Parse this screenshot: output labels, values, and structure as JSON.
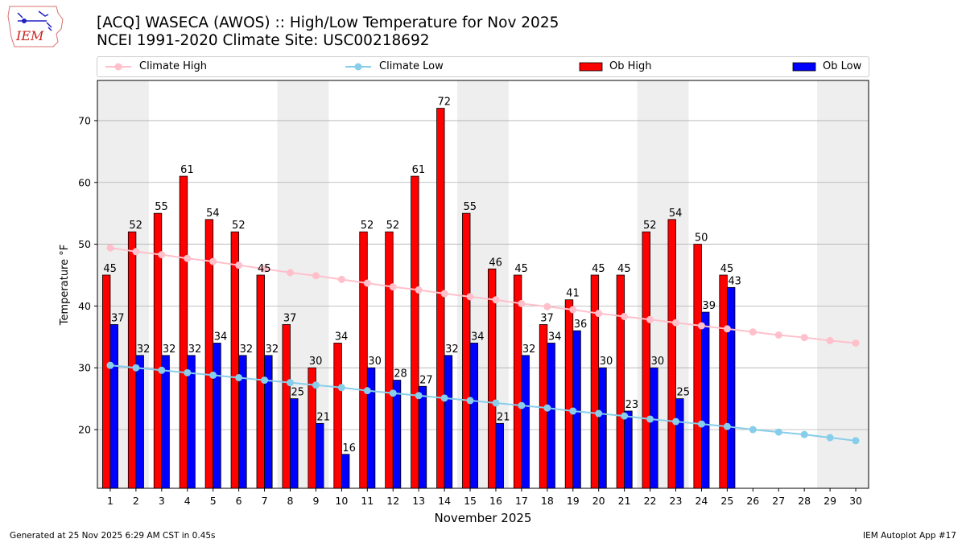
{
  "header": {
    "logo_text": "IEM",
    "title": "[ACQ] WASECA (AWOS) :: High/Low Temperature for Nov 2025",
    "subtitle": "NCEI 1991-2020 Climate Site: USC00218692"
  },
  "legend": {
    "climate_high": "Climate High",
    "climate_low": "Climate Low",
    "ob_high": "Ob High",
    "ob_low": "Ob Low"
  },
  "colors": {
    "ob_high": "#ff0000",
    "ob_low": "#0000ff",
    "climate_high": "#ffc0cb",
    "climate_low": "#87ceeb",
    "weekend_shade": "#eeeeee",
    "grid": "#b0b0b0"
  },
  "chart_data": {
    "type": "bar",
    "xlabel": "November 2025",
    "ylabel": "Temperature °F",
    "ylim": [
      10.5,
      76.5
    ],
    "yticks": [
      20,
      30,
      40,
      50,
      60,
      70
    ],
    "grid": "horizontal",
    "legend_position": "top",
    "days": [
      1,
      2,
      3,
      4,
      5,
      6,
      7,
      8,
      9,
      10,
      11,
      12,
      13,
      14,
      15,
      16,
      17,
      18,
      19,
      20,
      21,
      22,
      23,
      24,
      25,
      26,
      27,
      28,
      29,
      30
    ],
    "weekend_spans": [
      [
        1,
        2
      ],
      [
        8,
        9
      ],
      [
        15,
        16
      ],
      [
        22,
        23
      ],
      [
        29,
        30
      ]
    ],
    "series": [
      {
        "name": "Ob High",
        "kind": "bar",
        "values": [
          45,
          52,
          55,
          61,
          54,
          52,
          45,
          37,
          30,
          34,
          52,
          52,
          61,
          72,
          55,
          46,
          45,
          37,
          41,
          45,
          45,
          52,
          54,
          50,
          45
        ]
      },
      {
        "name": "Ob Low",
        "kind": "bar",
        "values": [
          37,
          32,
          32,
          32,
          34,
          32,
          32,
          25,
          21,
          16,
          30,
          28,
          27,
          32,
          34,
          21,
          32,
          34,
          36,
          30,
          23,
          30,
          25,
          39,
          43
        ]
      },
      {
        "name": "Climate High",
        "kind": "line",
        "values": [
          49.4,
          48.8,
          48.3,
          47.7,
          47.2,
          46.6,
          46.0,
          45.4,
          44.9,
          44.3,
          43.7,
          43.1,
          42.6,
          42.0,
          41.5,
          41.0,
          40.4,
          39.9,
          39.4,
          38.8,
          38.3,
          37.8,
          37.3,
          36.8,
          36.3,
          35.8,
          35.3,
          34.9,
          34.4,
          34.0
        ]
      },
      {
        "name": "Climate Low",
        "kind": "line",
        "values": [
          30.4,
          30.0,
          29.6,
          29.2,
          28.8,
          28.4,
          28.0,
          27.6,
          27.2,
          26.8,
          26.3,
          25.9,
          25.5,
          25.1,
          24.7,
          24.3,
          23.9,
          23.5,
          23.0,
          22.6,
          22.2,
          21.7,
          21.3,
          20.9,
          20.5,
          20.0,
          19.6,
          19.2,
          18.7,
          18.2
        ]
      }
    ]
  },
  "footer": {
    "generated": "Generated at 25 Nov 2025 6:29 AM CST in 0.45s",
    "app": "IEM Autoplot App #17"
  }
}
